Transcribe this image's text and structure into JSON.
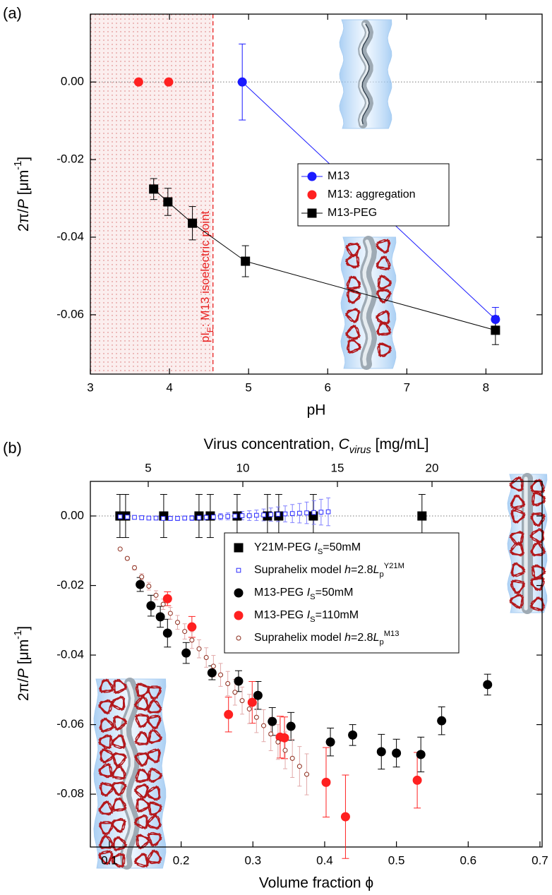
{
  "chart_data": [
    {
      "type": "line",
      "panel_label": "(a)",
      "x_label": "pH",
      "y_label": [
        {
          "text": "2π/"
        },
        {
          "text": "P",
          "style": "italic"
        },
        {
          "text": " [μm"
        },
        {
          "text": "-1",
          "style": "sup"
        },
        {
          "text": "]"
        }
      ],
      "annotation": [
        {
          "text": "pI"
        },
        {
          "text": "E",
          "style": "sub"
        },
        {
          "text": ": M13 isoelectric point"
        }
      ],
      "xlim": [
        3,
        8.71
      ],
      "ylim": [
        -0.0753,
        0.0175
      ],
      "xticks": [
        3,
        4,
        5,
        6,
        7,
        8
      ],
      "yticks": [
        {
          "value": 0,
          "label": "0.00"
        },
        {
          "value": -0.02,
          "label": "-0.02"
        },
        {
          "value": -0.04,
          "label": "-0.04"
        },
        {
          "value": -0.06,
          "label": "-0.06"
        }
      ],
      "reference_line": 0,
      "shaded_region": [
        3,
        4.55
      ],
      "series": [
        {
          "name": [
            {
              "text": "M13"
            }
          ],
          "color": "#1a1aff",
          "marker": "circle",
          "line": true,
          "x": [
            4.92,
            8.12
          ],
          "values": [
            0,
            -0.0612
          ],
          "errors": [
            0.0098,
            0.0031
          ]
        },
        {
          "name": [
            {
              "text": "M13: aggregation"
            }
          ],
          "color": "#ff2020",
          "marker": "circle",
          "line": false,
          "x": [
            3.61,
            3.99
          ],
          "values": [
            0,
            0
          ]
        },
        {
          "name": [
            {
              "text": "M13-PEG"
            }
          ],
          "color": "#000000",
          "marker": "square",
          "line": true,
          "x": [
            3.8,
            3.98,
            4.29,
            4.96,
            8.12
          ],
          "values": [
            -0.0276,
            -0.0309,
            -0.0364,
            -0.0462,
            -0.064
          ],
          "errors": [
            0.0027,
            0.0035,
            0.0043,
            0.004,
            0.0037
          ]
        }
      ]
    },
    {
      "type": "scatter",
      "panel_label": "(b)",
      "x_label": "Volume fraction ϕ",
      "x2_label": [
        {
          "text": "Virus concentration, "
        },
        {
          "text": "C",
          "style": "italic"
        },
        {
          "text": "virus",
          "style": "italic sub"
        },
        {
          "text": " [mg/mL]"
        }
      ],
      "y_label": [
        {
          "text": "2π/"
        },
        {
          "text": "P",
          "style": "italic"
        },
        {
          "text": " [μm"
        },
        {
          "text": "-1",
          "style": "sup"
        },
        {
          "text": "]"
        }
      ],
      "xlim": [
        0.0735,
        0.703
      ],
      "ylim": [
        -0.0952,
        0.00995
      ],
      "x2lim": [
        1.94,
        25.82
      ],
      "xticks": [
        0.1,
        0.2,
        0.3,
        0.4,
        0.5,
        0.6,
        0.7
      ],
      "x2ticks": [
        5,
        10,
        15,
        20
      ],
      "yticks": [
        {
          "value": 0,
          "label": "0.00"
        },
        {
          "value": -0.02,
          "label": "-0.02"
        },
        {
          "value": -0.04,
          "label": "-0.04"
        },
        {
          "value": -0.06,
          "label": "-0.06"
        },
        {
          "value": -0.08,
          "label": "-0.08"
        }
      ],
      "reference_line": 0,
      "series": [
        {
          "name": [
            {
              "text": "Y21M-PEG "
            },
            {
              "text": "I",
              "style": "italic"
            },
            {
              "text": "S",
              "style": "sub"
            },
            {
              "text": "=50mM"
            }
          ],
          "color": "#000000",
          "marker": "square",
          "line": false,
          "x": [
            0.1147,
            0.1226,
            0.1757,
            0.2249,
            0.2406,
            0.278,
            0.3203,
            0.336,
            0.3842,
            0.5356
          ],
          "values": [
            0,
            0,
            0,
            0,
            0,
            0,
            0,
            0,
            0,
            0
          ],
          "errors": [
            0.0062,
            0.0062,
            0.0062,
            0.0062,
            0.0062,
            0.0062,
            0.0062,
            0.0062,
            0.0062,
            0.0062
          ]
        },
        {
          "name": [
            {
              "text": "Suprahelix model "
            },
            {
              "text": "h",
              "style": "italic"
            },
            {
              "text": "=2.8"
            },
            {
              "text": "L",
              "style": "italic"
            },
            {
              "text": "p",
              "style": "sub"
            },
            {
              "text": "Y21M",
              "style": "sup"
            }
          ],
          "color": "#2a2aff",
          "error_color": "#8080ff",
          "marker": "open-square",
          "line": false,
          "x": [
            0.115,
            0.125,
            0.135,
            0.145,
            0.155,
            0.165,
            0.175,
            0.185,
            0.195,
            0.205,
            0.215,
            0.225,
            0.235,
            0.245,
            0.255,
            0.265,
            0.275,
            0.285,
            0.295,
            0.305,
            0.315,
            0.325,
            0.335,
            0.345,
            0.355,
            0.365,
            0.375,
            0.385,
            0.395,
            0.405
          ],
          "values": [
            -0.0002,
            -0.0003,
            -0.0004,
            -0.0005,
            -0.0006,
            -0.0006,
            -0.0007,
            -0.0007,
            -0.0007,
            -0.0006,
            -0.0006,
            -0.0005,
            -0.0004,
            -0.0003,
            -0.0002,
            -0.0001,
            0.0,
            0.0001,
            0.0001,
            0.0002,
            0.0003,
            0.0004,
            0.0005,
            0.0006,
            0.0007,
            0.0008,
            0.0009,
            0.001,
            0.0011,
            0.0012
          ],
          "errors": [
            0.0005,
            0.0005,
            0.0005,
            0.0005,
            0.0005,
            0.0005,
            0.0005,
            0.0006,
            0.0006,
            0.0006,
            0.0007,
            0.0007,
            0.0008,
            0.0008,
            0.0009,
            0.001,
            0.0011,
            0.0012,
            0.0014,
            0.0015,
            0.0017,
            0.0019,
            0.0021,
            0.0023,
            0.0026,
            0.0028,
            0.0031,
            0.0034,
            0.0037,
            0.004
          ]
        },
        {
          "name": [
            {
              "text": "M13-PEG "
            },
            {
              "text": "I",
              "style": "italic"
            },
            {
              "text": "S",
              "style": "sub"
            },
            {
              "text": "=50mM"
            }
          ],
          "color": "#000000",
          "marker": "circle",
          "line": false,
          "x": [
            0.143,
            0.158,
            0.171,
            0.181,
            0.207,
            0.243,
            0.28,
            0.307,
            0.327,
            0.353,
            0.408,
            0.439,
            0.479,
            0.5,
            0.534,
            0.563,
            0.627
          ],
          "values": [
            -0.0197,
            -0.0258,
            -0.029,
            -0.0337,
            -0.0394,
            -0.0451,
            -0.0475,
            -0.0516,
            -0.0591,
            -0.0605,
            -0.065,
            -0.063,
            -0.0678,
            -0.0682,
            -0.0686,
            -0.0589,
            -0.0485
          ],
          "errors": [
            0.002,
            0.003,
            0.003,
            0.004,
            0.003,
            0.002,
            0.003,
            0.004,
            0.004,
            0.004,
            0.004,
            0.003,
            0.005,
            0.004,
            0.005,
            0.004,
            0.003
          ]
        },
        {
          "name": [
            {
              "text": "M13-PEG "
            },
            {
              "text": "I",
              "style": "italic"
            },
            {
              "text": "S",
              "style": "sub"
            },
            {
              "text": "=110mM"
            }
          ],
          "color": "#ff2020",
          "marker": "circle",
          "line": false,
          "x": [
            0.181,
            0.215,
            0.266,
            0.299,
            0.338,
            0.344,
            0.402,
            0.429,
            0.529
          ],
          "values": [
            -0.0238,
            -0.0319,
            -0.0571,
            -0.0536,
            -0.0636,
            -0.0638,
            -0.0766,
            -0.0865,
            -0.076
          ],
          "errors": [
            0.002,
            0.003,
            0.005,
            0.006,
            0.006,
            0.006,
            0.01,
            0.012,
            0.008
          ]
        },
        {
          "name": [
            {
              "text": "Suprahelix model "
            },
            {
              "text": "h",
              "style": "italic"
            },
            {
              "text": "=2.8"
            },
            {
              "text": "L",
              "style": "italic"
            },
            {
              "text": "p",
              "style": "sub"
            },
            {
              "text": "M13",
              "style": "sup"
            }
          ],
          "color": "#8b2a1a",
          "error_color": "#e2a9a9",
          "marker": "open-circle",
          "line": false,
          "x": [
            0.115,
            0.125,
            0.135,
            0.145,
            0.155,
            0.165,
            0.175,
            0.185,
            0.195,
            0.205,
            0.215,
            0.225,
            0.235,
            0.245,
            0.255,
            0.265,
            0.275,
            0.285,
            0.295,
            0.305,
            0.315,
            0.325,
            0.335,
            0.345,
            0.355,
            0.365,
            0.375
          ],
          "values": [
            -0.0095,
            -0.0122,
            -0.0149,
            -0.0175,
            -0.0202,
            -0.0228,
            -0.0254,
            -0.028,
            -0.0306,
            -0.0332,
            -0.0357,
            -0.0382,
            -0.0407,
            -0.0432,
            -0.0457,
            -0.0482,
            -0.0507,
            -0.0531,
            -0.0555,
            -0.0579,
            -0.0603,
            -0.0627,
            -0.065,
            -0.0674,
            -0.0697,
            -0.072,
            -0.0743
          ],
          "errors": [
            0.0002,
            0.0004,
            0.0006,
            0.0009,
            0.0011,
            0.0013,
            0.0015,
            0.0017,
            0.002,
            0.0022,
            0.0024,
            0.0026,
            0.0028,
            0.0031,
            0.0033,
            0.0035,
            0.0037,
            0.0039,
            0.0042,
            0.0044,
            0.0046,
            0.0048,
            0.005,
            0.0053,
            0.0055,
            0.0057,
            0.0059
          ]
        }
      ]
    }
  ]
}
